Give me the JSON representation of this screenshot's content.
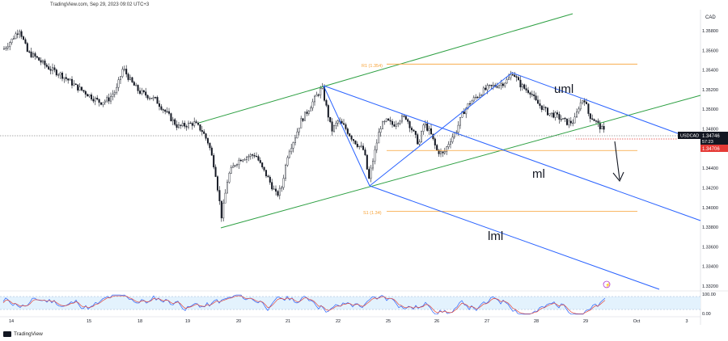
{
  "header": {
    "text": "TradingView.com, Sep 29, 2023 09:02 UTC+3"
  },
  "brand": {
    "name": "TradingView"
  },
  "chart_data": {
    "type": "candlestick",
    "symbol": "USDCAD",
    "currency_label": "CAD",
    "price_ticks": [
      "1.35800",
      "1.35600",
      "1.35400",
      "1.35200",
      "1.35000",
      "1.34800",
      "1.34600",
      "1.34400",
      "1.34200",
      "1.34000",
      "1.33800",
      "1.33600",
      "1.33400",
      "1.33200"
    ],
    "x_ticks": [
      "14",
      "15",
      "18",
      "19",
      "20",
      "21",
      "22",
      "25",
      "26",
      "27",
      "28",
      "29",
      "Oct",
      "3"
    ],
    "ylim": [
      1.3316,
      1.36
    ],
    "price_tag": {
      "symbol": "USDCAD",
      "price": "1.34746",
      "countdown": "57:23"
    },
    "level_tag": "1.34706",
    "levels": [
      {
        "label": "R1 (1.354)",
        "value": 1.3546
      },
      {
        "label": "",
        "value": 1.3458
      },
      {
        "label": "S1 (1.34)",
        "value": 1.3396
      }
    ],
    "annotations": [
      "uml",
      "ml",
      "lml"
    ],
    "grid": false,
    "rsi": {
      "ticks": [
        "100.00",
        "0.00"
      ]
    }
  },
  "colors": {
    "up": "#26a69a",
    "candle": "#131722",
    "green_channel": "#2ea043",
    "blue_pitchfork": "#2962ff",
    "fib_orange": "#f7a134",
    "price_tag_bg": "#131722",
    "level_tag_bg": "#e53935",
    "rsi_blue": "#2962ff",
    "rsi_red": "#e0473d",
    "rsi_band": "#e3f2fd"
  }
}
